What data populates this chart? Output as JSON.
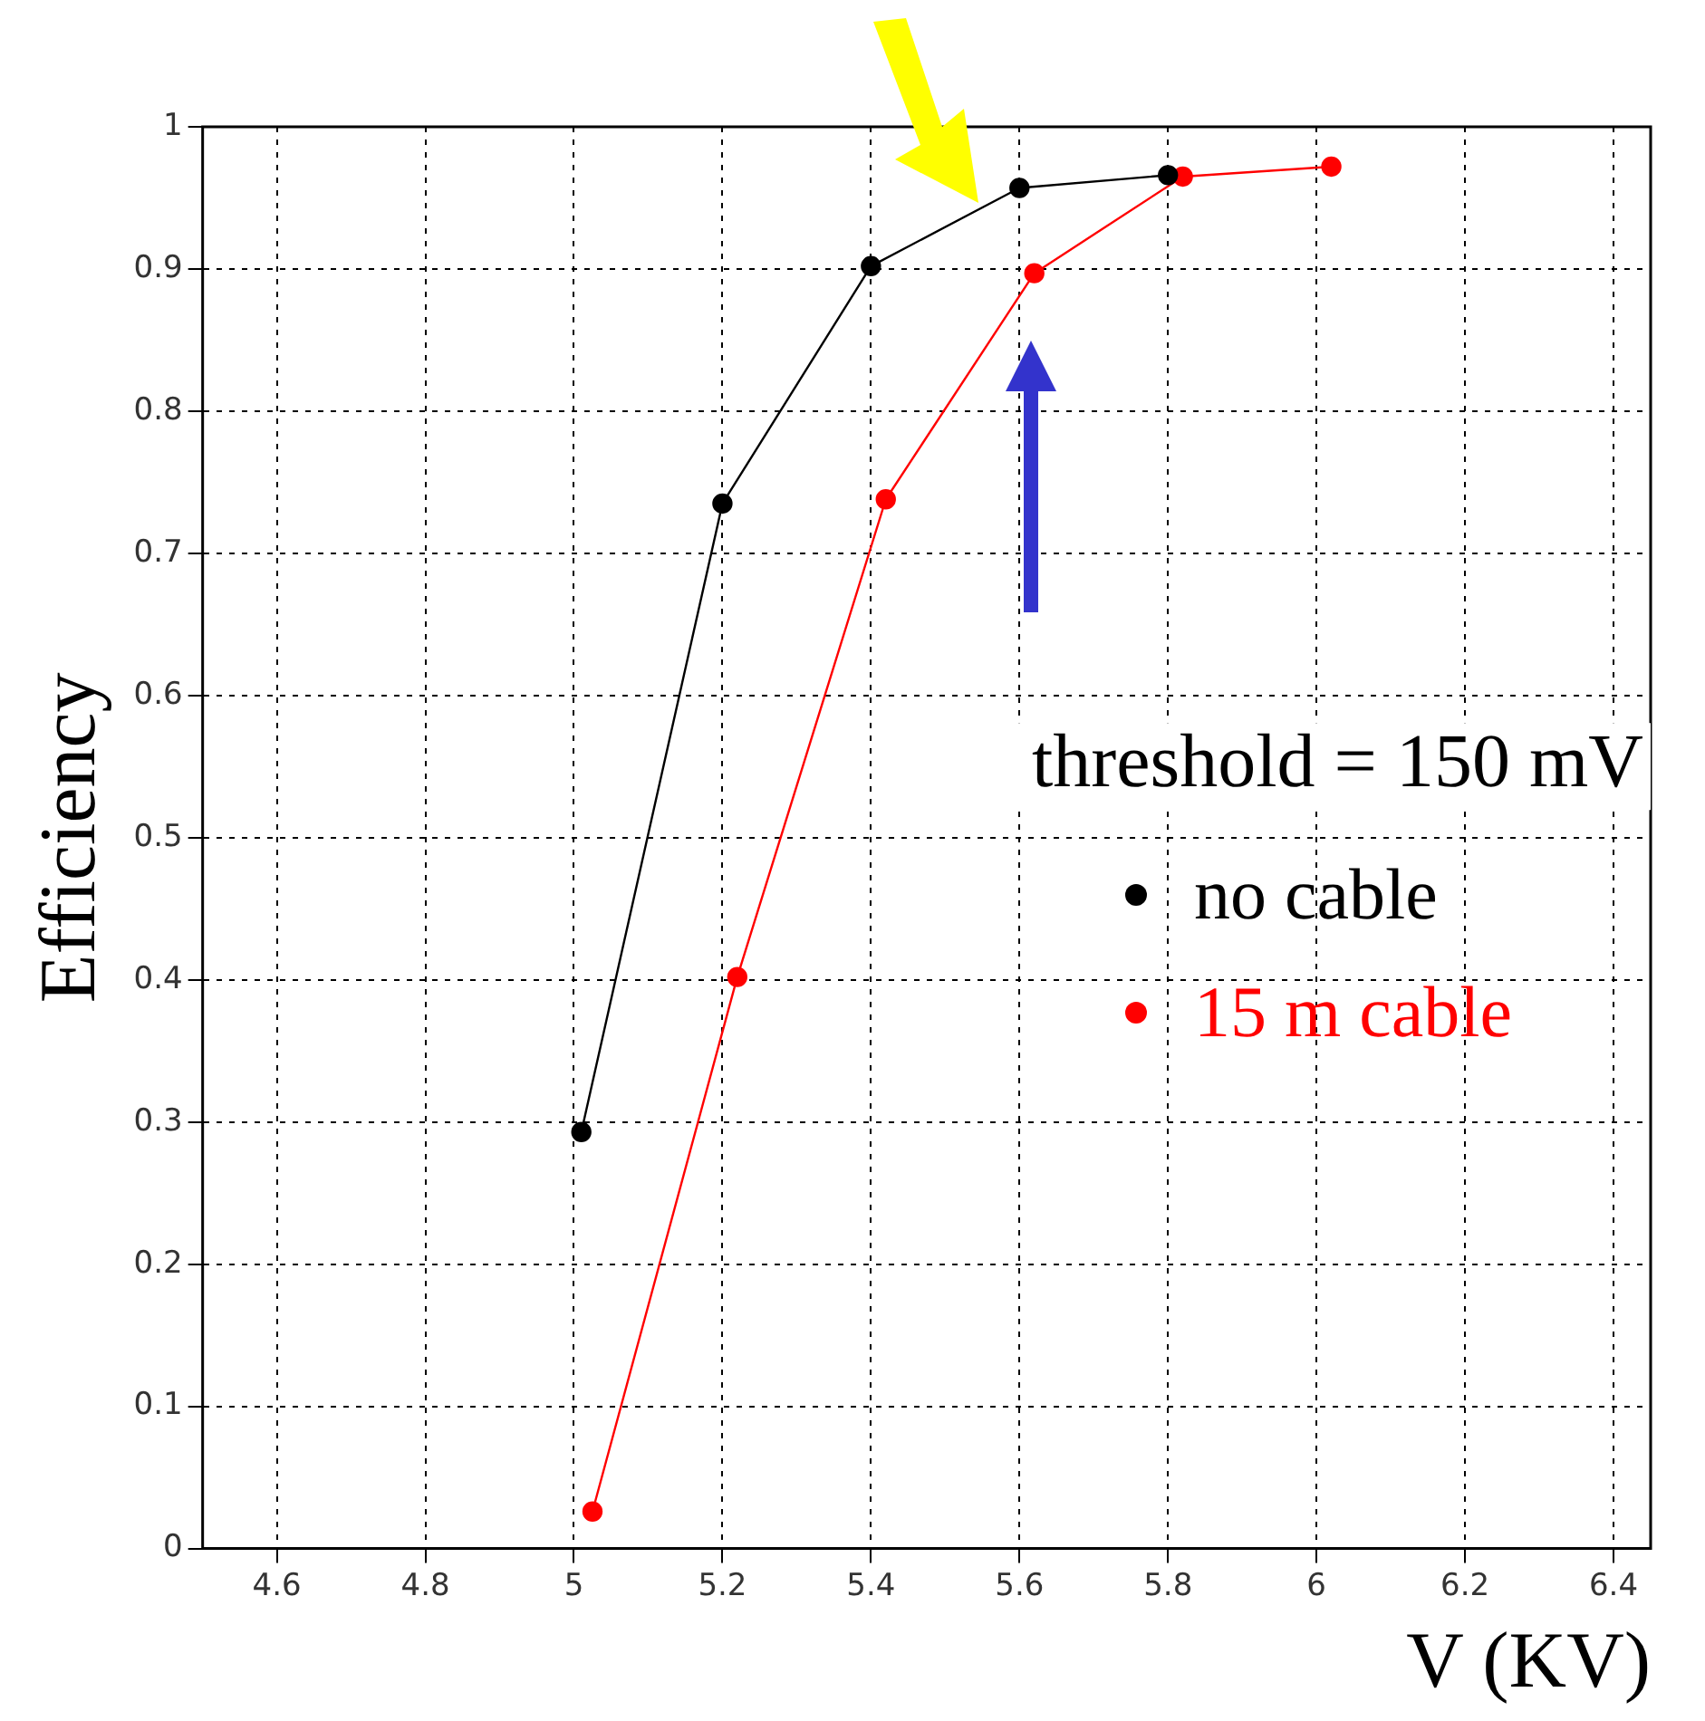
{
  "chart_data": {
    "type": "line",
    "xlabel": "V (KV)",
    "ylabel": "Efficiency",
    "xlim": [
      4.5,
      6.45
    ],
    "xticks": [
      4.6,
      4.8,
      5,
      5.2,
      5.4,
      5.6,
      5.8,
      6,
      6.2,
      6.4
    ],
    "ylim": [
      0,
      1
    ],
    "yticks": [
      0,
      0.1,
      0.2,
      0.3,
      0.4,
      0.5,
      0.6,
      0.7,
      0.8,
      0.9,
      1
    ],
    "grid": true,
    "legend": "right",
    "marker": "circle",
    "line_style": "solid",
    "annotations": [
      "threshold = 150 mV"
    ],
    "series": [
      {
        "name": "no cable",
        "color": "#000000",
        "x": [
          5.01,
          5.2,
          5.4,
          5.6,
          5.8
        ],
        "values": [
          0.293,
          0.735,
          0.902,
          0.957,
          0.966
        ]
      },
      {
        "name": "15 m cable",
        "color": "#ff0000",
        "x": [
          5.025,
          5.22,
          5.42,
          5.62,
          5.82,
          6.02
        ],
        "values": [
          0.026,
          0.402,
          0.738,
          0.897,
          0.965,
          0.972
        ]
      }
    ]
  }
}
